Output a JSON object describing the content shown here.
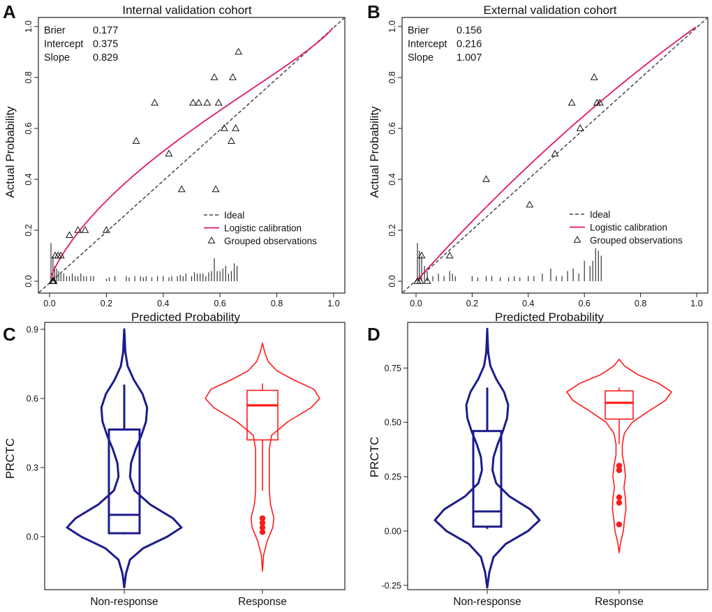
{
  "figure": {
    "colors": {
      "axis": "#222222",
      "logistic": "#e0156f",
      "ideal": "#444444",
      "nonresponse": "#1c1c8c",
      "response": "#ff1a1a"
    }
  },
  "chart_data": [
    {
      "panel": "A",
      "type": "scatter",
      "title": "Internal validation cohort",
      "xlabel": "Predicted Probability",
      "ylabel": "Actual Probability",
      "xlim": [
        0,
        1
      ],
      "ylim": [
        0,
        1
      ],
      "xticks": [
        "0.0",
        "0.2",
        "0.4",
        "0.6",
        "0.8",
        "1.0"
      ],
      "yticks": [
        "0.0",
        "0.2",
        "0.4",
        "0.6",
        "0.8",
        "1.0"
      ],
      "stats": [
        {
          "label": "Brier",
          "value": "0.177"
        },
        {
          "label": "Intercept",
          "value": "0.375"
        },
        {
          "label": "Slope",
          "value": "0.829"
        }
      ],
      "legend": [
        {
          "key": "ideal",
          "label": "Ideal"
        },
        {
          "key": "logistic",
          "label": "Logistic calibration"
        },
        {
          "key": "grouped",
          "label": "Grouped observations"
        }
      ],
      "logistic_intercept": 0.375,
      "logistic_slope": 0.829,
      "grouped_observations": [
        [
          0.01,
          0.0
        ],
        [
          0.012,
          0.0
        ],
        [
          0.015,
          0.0
        ],
        [
          0.02,
          0.1
        ],
        [
          0.03,
          0.1
        ],
        [
          0.04,
          0.1
        ],
        [
          0.07,
          0.18
        ],
        [
          0.1,
          0.2
        ],
        [
          0.125,
          0.2
        ],
        [
          0.2,
          0.2
        ],
        [
          0.305,
          0.55
        ],
        [
          0.37,
          0.7
        ],
        [
          0.42,
          0.5
        ],
        [
          0.465,
          0.36
        ],
        [
          0.505,
          0.7
        ],
        [
          0.525,
          0.7
        ],
        [
          0.555,
          0.7
        ],
        [
          0.585,
          0.36
        ],
        [
          0.58,
          0.8
        ],
        [
          0.595,
          0.7
        ],
        [
          0.615,
          0.6
        ],
        [
          0.64,
          0.55
        ],
        [
          0.645,
          0.8
        ],
        [
          0.655,
          0.6
        ],
        [
          0.665,
          0.9
        ]
      ],
      "rug": {
        "x": [
          0.005,
          0.012,
          0.018,
          0.025,
          0.032,
          0.04,
          0.05,
          0.06,
          0.07,
          0.08,
          0.09,
          0.1,
          0.11,
          0.12,
          0.13,
          0.145,
          0.155,
          0.2,
          0.21,
          0.23,
          0.27,
          0.28,
          0.3,
          0.32,
          0.33,
          0.34,
          0.36,
          0.38,
          0.4,
          0.42,
          0.43,
          0.45,
          0.46,
          0.47,
          0.48,
          0.5,
          0.51,
          0.52,
          0.53,
          0.54,
          0.55,
          0.56,
          0.57,
          0.58,
          0.59,
          0.6,
          0.61,
          0.62,
          0.63,
          0.64,
          0.65,
          0.66
        ],
        "h": [
          0.15,
          0.1,
          0.06,
          0.05,
          0.04,
          0.03,
          0.03,
          0.02,
          0.02,
          0.03,
          0.02,
          0.02,
          0.03,
          0.02,
          0.02,
          0.02,
          0.02,
          0.01,
          0.015,
          0.02,
          0.02,
          0.015,
          0.02,
          0.02,
          0.015,
          0.02,
          0.015,
          0.02,
          0.02,
          0.015,
          0.02,
          0.02,
          0.025,
          0.02,
          0.03,
          0.02,
          0.035,
          0.03,
          0.03,
          0.03,
          0.02,
          0.035,
          0.04,
          0.09,
          0.04,
          0.04,
          0.05,
          0.06,
          0.03,
          0.04,
          0.07,
          0.06
        ]
      }
    },
    {
      "panel": "B",
      "type": "scatter",
      "title": "External validation cohort",
      "xlabel": "Predicted Probability",
      "ylabel": "Actual Probability",
      "xlim": [
        0,
        1
      ],
      "ylim": [
        0,
        1
      ],
      "xticks": [
        "0.0",
        "0.2",
        "0.4",
        "0.6",
        "0.8",
        "1.0"
      ],
      "yticks": [
        "0.0",
        "0.2",
        "0.4",
        "0.6",
        "0.8",
        "1.0"
      ],
      "stats": [
        {
          "label": "Brier",
          "value": "0.156"
        },
        {
          "label": "Intercept",
          "value": "0.216"
        },
        {
          "label": "Slope",
          "value": "1.007"
        }
      ],
      "legend": [
        {
          "key": "ideal",
          "label": "Ideal"
        },
        {
          "key": "logistic",
          "label": "Logistic calibration"
        },
        {
          "key": "grouped",
          "label": "Grouped observations"
        }
      ],
      "logistic_intercept": 0.216,
      "logistic_slope": 1.007,
      "grouped_observations": [
        [
          0.005,
          0.0
        ],
        [
          0.015,
          0.0
        ],
        [
          0.02,
          0.1
        ],
        [
          0.04,
          0.0
        ],
        [
          0.12,
          0.1
        ],
        [
          0.25,
          0.4
        ],
        [
          0.405,
          0.3
        ],
        [
          0.495,
          0.5
        ],
        [
          0.555,
          0.7
        ],
        [
          0.585,
          0.6
        ],
        [
          0.635,
          0.8
        ],
        [
          0.645,
          0.7
        ],
        [
          0.655,
          0.7
        ]
      ],
      "rug": {
        "x": [
          0.005,
          0.012,
          0.02,
          0.03,
          0.04,
          0.06,
          0.08,
          0.1,
          0.12,
          0.13,
          0.14,
          0.2,
          0.22,
          0.25,
          0.27,
          0.3,
          0.33,
          0.35,
          0.37,
          0.4,
          0.42,
          0.45,
          0.48,
          0.5,
          0.52,
          0.54,
          0.56,
          0.58,
          0.6,
          0.62,
          0.63,
          0.64,
          0.65,
          0.66
        ],
        "h": [
          0.15,
          0.12,
          0.1,
          0.06,
          0.04,
          0.02,
          0.03,
          0.02,
          0.04,
          0.03,
          0.02,
          0.02,
          0.015,
          0.02,
          0.02,
          0.015,
          0.015,
          0.02,
          0.015,
          0.02,
          0.02,
          0.03,
          0.05,
          0.02,
          0.02,
          0.04,
          0.05,
          0.03,
          0.08,
          0.06,
          0.08,
          0.13,
          0.12,
          0.1
        ]
      }
    },
    {
      "panel": "C",
      "type": "violin",
      "ylabel": "PRCTC",
      "ylim": [
        -0.23,
        0.93
      ],
      "yticks": [
        "0.0",
        "0.3",
        "0.6",
        "0.9"
      ],
      "categories": [
        "Non-response",
        "Response"
      ],
      "groups": [
        {
          "name": "Non-response",
          "color_key": "nonresponse",
          "box": {
            "q1": 0.015,
            "median": 0.095,
            "q3": 0.465,
            "whisker_low": 0.01,
            "whisker_high": 0.66
          },
          "outliers": [],
          "density": [
            [
              -0.22,
              0.0
            ],
            [
              -0.16,
              0.03
            ],
            [
              -0.1,
              0.1
            ],
            [
              -0.05,
              0.33
            ],
            [
              0.0,
              0.75
            ],
            [
              0.04,
              1.0
            ],
            [
              0.08,
              0.85
            ],
            [
              0.14,
              0.45
            ],
            [
              0.2,
              0.18
            ],
            [
              0.26,
              0.1
            ],
            [
              0.32,
              0.12
            ],
            [
              0.38,
              0.2
            ],
            [
              0.44,
              0.3
            ],
            [
              0.5,
              0.38
            ],
            [
              0.56,
              0.4
            ],
            [
              0.62,
              0.32
            ],
            [
              0.68,
              0.17
            ],
            [
              0.74,
              0.06
            ],
            [
              0.8,
              0.02
            ],
            [
              0.86,
              0.008
            ],
            [
              0.9,
              0.0
            ]
          ]
        },
        {
          "name": "Response",
          "color_key": "response",
          "box": {
            "q1": 0.42,
            "median": 0.57,
            "q3": 0.635,
            "whisker_low": 0.2,
            "whisker_high": 0.665
          },
          "outliers": [
            0.02,
            0.04,
            0.06,
            0.08
          ],
          "density": [
            [
              -0.15,
              0.0
            ],
            [
              -0.08,
              0.02
            ],
            [
              -0.02,
              0.08
            ],
            [
              0.04,
              0.18
            ],
            [
              0.08,
              0.2
            ],
            [
              0.14,
              0.14
            ],
            [
              0.2,
              0.12
            ],
            [
              0.26,
              0.12
            ],
            [
              0.32,
              0.12
            ],
            [
              0.38,
              0.12
            ],
            [
              0.44,
              0.16
            ],
            [
              0.5,
              0.45
            ],
            [
              0.56,
              0.85
            ],
            [
              0.6,
              1.0
            ],
            [
              0.64,
              0.9
            ],
            [
              0.68,
              0.55
            ],
            [
              0.72,
              0.25
            ],
            [
              0.76,
              0.1
            ],
            [
              0.8,
              0.04
            ],
            [
              0.84,
              0.0
            ]
          ]
        }
      ]
    },
    {
      "panel": "D",
      "type": "violin",
      "ylabel": "PRCTC",
      "ylim": [
        -0.27,
        0.96
      ],
      "yticks": [
        "-0.25",
        "0.00",
        "0.25",
        "0.50",
        "0.75"
      ],
      "categories": [
        "Non-response",
        "Response"
      ],
      "groups": [
        {
          "name": "Non-response",
          "color_key": "nonresponse",
          "box": {
            "q1": 0.02,
            "median": 0.09,
            "q3": 0.46,
            "whisker_low": 0.01,
            "whisker_high": 0.66
          },
          "outliers": [],
          "density": [
            [
              -0.26,
              0.0
            ],
            [
              -0.19,
              0.04
            ],
            [
              -0.12,
              0.12
            ],
            [
              -0.06,
              0.35
            ],
            [
              0.0,
              0.78
            ],
            [
              0.05,
              1.0
            ],
            [
              0.1,
              0.82
            ],
            [
              0.16,
              0.42
            ],
            [
              0.22,
              0.17
            ],
            [
              0.28,
              0.1
            ],
            [
              0.34,
              0.12
            ],
            [
              0.4,
              0.2
            ],
            [
              0.46,
              0.3
            ],
            [
              0.52,
              0.38
            ],
            [
              0.58,
              0.4
            ],
            [
              0.64,
              0.32
            ],
            [
              0.7,
              0.17
            ],
            [
              0.76,
              0.06
            ],
            [
              0.82,
              0.02
            ],
            [
              0.88,
              0.008
            ],
            [
              0.93,
              0.0
            ]
          ]
        },
        {
          "name": "Response",
          "color_key": "response",
          "box": {
            "q1": 0.515,
            "median": 0.59,
            "q3": 0.645,
            "whisker_low": 0.4,
            "whisker_high": 0.66
          },
          "outliers": [
            0.03,
            0.13,
            0.155,
            0.28,
            0.3
          ],
          "density": [
            [
              -0.1,
              0.0
            ],
            [
              -0.05,
              0.03
            ],
            [
              0.0,
              0.08
            ],
            [
              0.05,
              0.1
            ],
            [
              0.1,
              0.13
            ],
            [
              0.15,
              0.12
            ],
            [
              0.2,
              0.09
            ],
            [
              0.25,
              0.12
            ],
            [
              0.3,
              0.1
            ],
            [
              0.35,
              0.06
            ],
            [
              0.4,
              0.06
            ],
            [
              0.45,
              0.1
            ],
            [
              0.5,
              0.25
            ],
            [
              0.55,
              0.55
            ],
            [
              0.6,
              0.88
            ],
            [
              0.64,
              1.0
            ],
            [
              0.68,
              0.75
            ],
            [
              0.72,
              0.35
            ],
            [
              0.76,
              0.1
            ],
            [
              0.79,
              0.0
            ]
          ]
        }
      ]
    }
  ]
}
